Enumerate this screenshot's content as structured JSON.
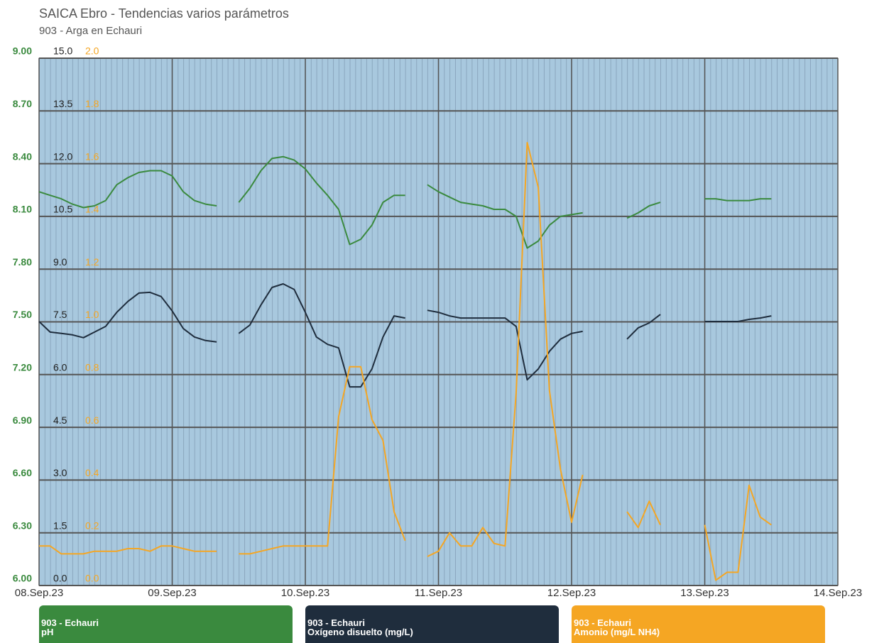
{
  "chart_data": {
    "type": "line",
    "title": "SAICA Ebro - Tendencias varios parámetros",
    "subtitle": "903 - Arga en Echauri",
    "x": [
      "2023-09-08T00:00",
      "2023-09-08T02:00",
      "2023-09-08T04:00",
      "2023-09-08T06:00",
      "2023-09-08T08:00",
      "2023-09-08T10:00",
      "2023-09-08T12:00",
      "2023-09-08T14:00",
      "2023-09-08T16:00",
      "2023-09-08T18:00",
      "2023-09-08T20:00",
      "2023-09-08T22:00",
      "2023-09-09T00:00",
      "2023-09-09T02:00",
      "2023-09-09T04:00",
      "2023-09-09T06:00",
      "2023-09-09T08:00",
      "2023-09-09T10:00",
      "2023-09-09T12:00",
      "2023-09-09T14:00",
      "2023-09-09T16:00",
      "2023-09-09T18:00",
      "2023-09-09T20:00",
      "2023-09-09T22:00",
      "2023-09-10T00:00",
      "2023-09-10T02:00",
      "2023-09-10T04:00",
      "2023-09-10T06:00",
      "2023-09-10T08:00",
      "2023-09-10T10:00",
      "2023-09-10T12:00",
      "2023-09-10T14:00",
      "2023-09-10T16:00",
      "2023-09-10T18:00",
      "2023-09-10T20:00",
      "2023-09-10T22:00",
      "2023-09-11T00:00",
      "2023-09-11T02:00",
      "2023-09-11T04:00",
      "2023-09-11T06:00",
      "2023-09-11T08:00",
      "2023-09-11T10:00",
      "2023-09-11T12:00",
      "2023-09-11T14:00",
      "2023-09-11T16:00",
      "2023-09-11T18:00",
      "2023-09-11T20:00",
      "2023-09-11T22:00",
      "2023-09-12T00:00",
      "2023-09-12T02:00",
      "2023-09-12T04:00",
      "2023-09-12T06:00",
      "2023-09-12T08:00",
      "2023-09-12T10:00",
      "2023-09-12T12:00",
      "2023-09-12T14:00",
      "2023-09-12T16:00",
      "2023-09-12T18:00",
      "2023-09-12T20:00",
      "2023-09-12T22:00",
      "2023-09-13T00:00",
      "2023-09-13T02:00",
      "2023-09-13T04:00",
      "2023-09-13T06:00",
      "2023-09-13T08:00",
      "2023-09-13T10:00",
      "2023-09-13T12:00"
    ],
    "xlim": [
      "2023-09-08T00:00",
      "2023-09-14T00:00"
    ],
    "xticks": [
      {
        "value": "2023-09-08T00:00",
        "label": "08.Sep.23"
      },
      {
        "value": "2023-09-09T00:00",
        "label": "09.Sep.23"
      },
      {
        "value": "2023-09-10T00:00",
        "label": "10.Sep.23"
      },
      {
        "value": "2023-09-11T00:00",
        "label": "11.Sep.23"
      },
      {
        "value": "2023-09-12T00:00",
        "label": "12.Sep.23"
      },
      {
        "value": "2023-09-13T00:00",
        "label": "13.Sep.23"
      },
      {
        "value": "2023-09-14T00:00",
        "label": "14.Sep.23"
      }
    ],
    "ylim": [
      6,
      9
    ],
    "yticks": [
      {
        "value": 9,
        "label": "9.00"
      },
      {
        "value": 8.7,
        "label": "8.70"
      },
      {
        "value": 8.4,
        "label": "8.40"
      },
      {
        "value": 8.1,
        "label": "8.10"
      },
      {
        "value": 7.8,
        "label": "7.80"
      },
      {
        "value": 7.5,
        "label": "7.50"
      },
      {
        "value": 7.2,
        "label": "7.20"
      },
      {
        "value": 6.9,
        "label": "6.90"
      },
      {
        "value": 6.6,
        "label": "6.60"
      },
      {
        "value": 6.3,
        "label": "6.30"
      },
      {
        "value": 6,
        "label": "6.00"
      }
    ],
    "y2lim": [
      0,
      15
    ],
    "y2ticks": [
      {
        "value": 15,
        "label": "15.0"
      },
      13.5,
      {
        "value": 12,
        "label": "12.0"
      },
      10.5,
      {
        "value": 9,
        "label": "9.0"
      },
      7.5,
      {
        "value": 6,
        "label": "6.0"
      },
      4.5,
      {
        "value": 3,
        "label": "3.0"
      },
      1.5,
      {
        "value": 0,
        "label": "0.0"
      }
    ],
    "y3lim": [
      0,
      2
    ],
    "y3ticks": [
      {
        "value": 2,
        "label": "2.0"
      },
      1.8,
      1.6,
      1.4,
      1.2,
      {
        "value": 1,
        "label": "1.0"
      },
      0.8,
      0.6,
      0.4,
      0.2,
      {
        "value": 0,
        "label": "0.0"
      }
    ],
    "grid": true,
    "series": [
      {
        "station": "903 - Echauri",
        "name": "pH",
        "color": "#3a8a3e",
        "axis": "y",
        "values": [
          8.24,
          8.22,
          8.2,
          8.17,
          8.15,
          8.16,
          8.19,
          8.28,
          8.32,
          8.35,
          8.36,
          8.36,
          8.33,
          8.24,
          8.19,
          8.17,
          8.16,
          null,
          8.18,
          8.26,
          8.36,
          8.43,
          8.44,
          8.42,
          8.37,
          8.29,
          8.22,
          8.14,
          7.94,
          7.97,
          8.05,
          8.18,
          8.22,
          8.22,
          null,
          8.28,
          8.24,
          8.21,
          8.18,
          8.17,
          8.16,
          8.14,
          8.14,
          8.1,
          7.92,
          7.96,
          8.05,
          8.1,
          8.11,
          8.12,
          null,
          null,
          null,
          8.09,
          8.12,
          8.16,
          8.18,
          null,
          null,
          null,
          8.2,
          8.2,
          8.19,
          8.19,
          8.19,
          8.2,
          8.2
        ]
      },
      {
        "station": "903 - Echauri",
        "name": "Oxígeno disuelto (mg/L)",
        "color": "#1f2d3d",
        "axis": "y2",
        "values": [
          7.51,
          7.21,
          7.17,
          7.13,
          7.05,
          7.21,
          7.37,
          7.77,
          8.08,
          8.32,
          8.34,
          8.22,
          7.81,
          7.31,
          7.07,
          6.97,
          6.93,
          null,
          7.17,
          7.41,
          7.98,
          8.48,
          8.58,
          8.42,
          7.77,
          7.07,
          6.86,
          6.76,
          5.65,
          5.65,
          6.16,
          7.07,
          7.67,
          7.61,
          null,
          7.83,
          7.77,
          7.67,
          7.61,
          7.61,
          7.61,
          7.61,
          7.61,
          7.37,
          5.85,
          6.16,
          6.66,
          7.01,
          7.17,
          7.23,
          null,
          null,
          null,
          7.01,
          7.33,
          7.47,
          7.71,
          null,
          null,
          null,
          7.51,
          7.51,
          7.51,
          7.51,
          7.57,
          7.61,
          7.67
        ]
      },
      {
        "station": "903 - Echauri",
        "name": "Amonio (mg/L NH4)",
        "color": "#f5a623",
        "axis": "y3",
        "values": [
          0.15,
          0.15,
          0.12,
          0.12,
          0.12,
          0.13,
          0.13,
          0.13,
          0.14,
          0.14,
          0.13,
          0.15,
          0.15,
          0.14,
          0.13,
          0.13,
          0.13,
          null,
          0.12,
          0.12,
          0.13,
          0.14,
          0.15,
          0.15,
          0.15,
          0.15,
          0.15,
          0.64,
          0.83,
          0.83,
          0.63,
          0.55,
          0.28,
          0.17,
          null,
          0.11,
          0.13,
          0.2,
          0.15,
          0.15,
          0.22,
          0.16,
          0.15,
          0.73,
          1.68,
          1.51,
          0.74,
          0.44,
          0.24,
          0.42,
          null,
          null,
          null,
          0.28,
          0.22,
          0.32,
          0.23,
          null,
          null,
          null,
          0.23,
          0.02,
          0.05,
          0.05,
          0.38,
          0.26,
          0.23
        ]
      }
    ]
  }
}
